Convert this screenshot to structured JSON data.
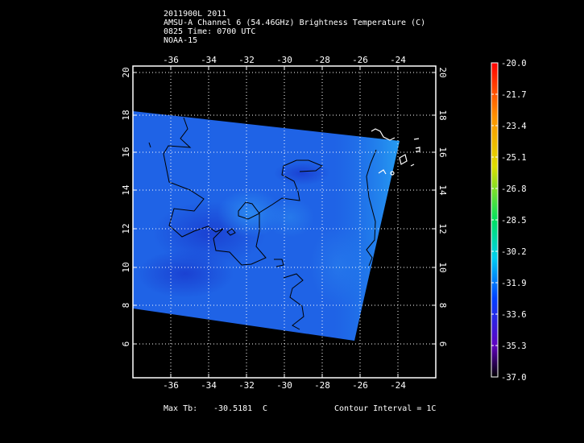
{
  "header": {
    "line1": "2011900L 2011",
    "line2": "AMSU-A Channel 6 (54.46GHz) Brightness Temperature (C)",
    "line3": "0825 Time: 0700 UTC",
    "line4": "NOAA-15"
  },
  "map": {
    "x_ticks": [
      "-36",
      "-34",
      "-32",
      "-30",
      "-28",
      "-26",
      "-24"
    ],
    "y_ticks": [
      "20",
      "18",
      "16",
      "14",
      "12",
      "10",
      "8",
      "6"
    ],
    "colors": {
      "swath": "#1f63e6",
      "swath_dark": "#1c44d6",
      "swath_light": "#2c8bf0",
      "contour": "#000000",
      "grid": "#ffffff"
    }
  },
  "colorbar": {
    "labels": [
      "-20.0",
      "-21.7",
      "-23.4",
      "-25.1",
      "-26.8",
      "-28.5",
      "-30.2",
      "-31.9",
      "-33.6",
      "-35.3",
      "-37.0"
    ]
  },
  "footer": {
    "max_tb_label": "Max Tb:",
    "max_tb_value": "-30.5181",
    "max_tb_unit": "C",
    "contour_interval": "Contour Interval = 1C"
  }
}
